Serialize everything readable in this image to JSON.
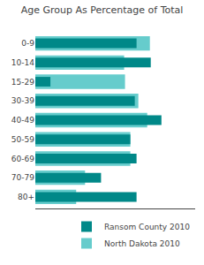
{
  "chart_data": {
    "type": "bar",
    "title": "Age Group As Percentage of Total",
    "orientation": "horizontal",
    "categories": [
      "80+",
      "70-79",
      "60-69",
      "50-59",
      "40-49",
      "30-39",
      "15-29",
      "10-14",
      "0-9"
    ],
    "series": [
      {
        "name": "Ransom County 2010",
        "color": "#008888",
        "values": [
          11.4,
          7.4,
          11.4,
          10.7,
          14.2,
          11.2,
          1.7,
          13.0,
          11.4
        ]
      },
      {
        "name": "North Dakota 2010",
        "color": "#66cccc",
        "values": [
          4.6,
          5.6,
          10.7,
          10.7,
          12.6,
          11.6,
          10.1,
          10.0,
          12.9
        ]
      }
    ],
    "xlim": [
      0,
      18
    ],
    "xticks": [],
    "tick_labels": "y",
    "grid": false,
    "legend": "lower right"
  }
}
